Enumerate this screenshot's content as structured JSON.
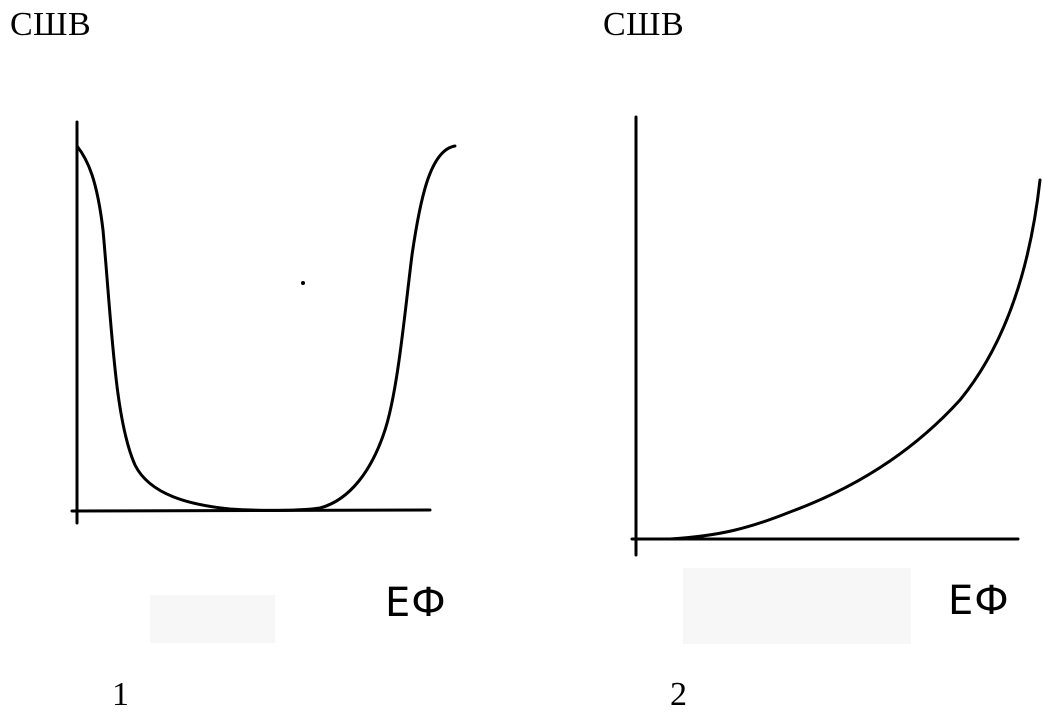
{
  "chart_data": [
    {
      "type": "line",
      "ylabel": "СШВ",
      "xlabel": "ЕФ",
      "panel_label": "1",
      "shape": "U-shaped curve: high at both ends, near zero in the middle",
      "series": [
        {
          "points": [
            [
              0.0,
              1.0
            ],
            [
              0.05,
              0.78
            ],
            [
              0.1,
              0.3
            ],
            [
              0.2,
              0.06
            ],
            [
              0.35,
              0.0
            ],
            [
              0.5,
              0.0
            ],
            [
              0.65,
              0.02
            ],
            [
              0.8,
              0.18
            ],
            [
              0.9,
              0.7
            ],
            [
              1.0,
              0.97
            ]
          ]
        }
      ]
    },
    {
      "type": "line",
      "ylabel": "СШВ",
      "xlabel": "ЕФ",
      "panel_label": "2",
      "shape": "monotonically increasing convex curve",
      "series": [
        {
          "points": [
            [
              0.0,
              0.0
            ],
            [
              0.15,
              0.0
            ],
            [
              0.3,
              0.05
            ],
            [
              0.5,
              0.14
            ],
            [
              0.7,
              0.3
            ],
            [
              0.85,
              0.5
            ],
            [
              0.95,
              0.74
            ],
            [
              1.0,
              0.92
            ]
          ]
        }
      ]
    }
  ]
}
